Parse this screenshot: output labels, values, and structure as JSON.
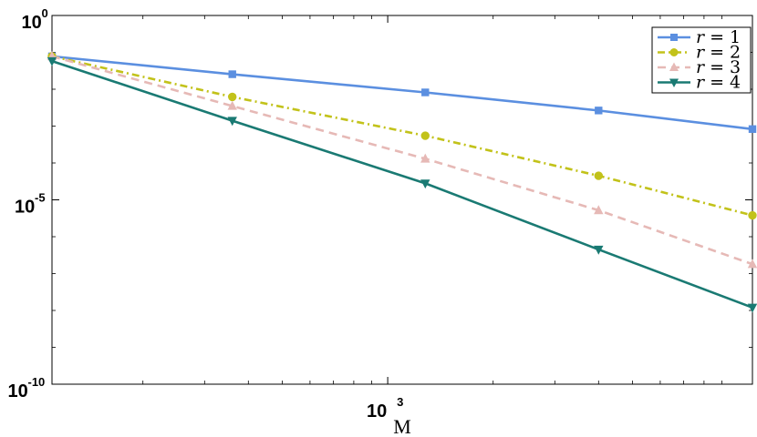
{
  "chart_data": {
    "type": "line",
    "xlabel": "M",
    "ylabel": "",
    "title": "",
    "xscale": "log",
    "yscale": "log",
    "xlim": [
      100,
      4500
    ],
    "ylim": [
      1e-10,
      1
    ],
    "x": [
      110,
      360,
      1280,
      4000,
      11000
    ],
    "grid": false,
    "legend_position": "top-right",
    "x_ticks": [
      {
        "value": 1000,
        "base": "10",
        "exp": "3"
      }
    ],
    "y_ticks": [
      {
        "value": 1,
        "base": "10",
        "exp": "0"
      },
      {
        "value": 1e-05,
        "base": "10",
        "exp": "-5"
      },
      {
        "value": 1e-10,
        "base": "10",
        "exp": "-10"
      }
    ],
    "series": [
      {
        "name": "r = 1",
        "name_parts": [
          "r",
          "=",
          "1"
        ],
        "color": "#5b8fe0",
        "dash": "solid",
        "marker": "square",
        "values": [
          0.078,
          0.0255,
          0.0082,
          0.00265,
          0.00083
        ]
      },
      {
        "name": "r = 2",
        "name_parts": [
          "r",
          "=",
          "2"
        ],
        "color": "#c2c21a",
        "dash": "dashdot",
        "marker": "circle",
        "values": [
          0.078,
          0.0062,
          0.00055,
          4.5e-05,
          3.8e-06
        ]
      },
      {
        "name": "r = 3",
        "name_parts": [
          "r",
          "=",
          "3"
        ],
        "color": "#e6b9b6",
        "dash": "dashed",
        "marker": "triangle-up",
        "values": [
          0.078,
          0.0035,
          0.00013,
          5.2e-06,
          1.8e-07
        ]
      },
      {
        "name": "r = 4",
        "name_parts": [
          "r",
          "=",
          "4"
        ],
        "color": "#1a7a73",
        "dash": "solid",
        "marker": "triangle-down",
        "values": [
          0.058,
          0.0014,
          2.8e-05,
          4.5e-07,
          1.2e-08
        ]
      }
    ]
  }
}
